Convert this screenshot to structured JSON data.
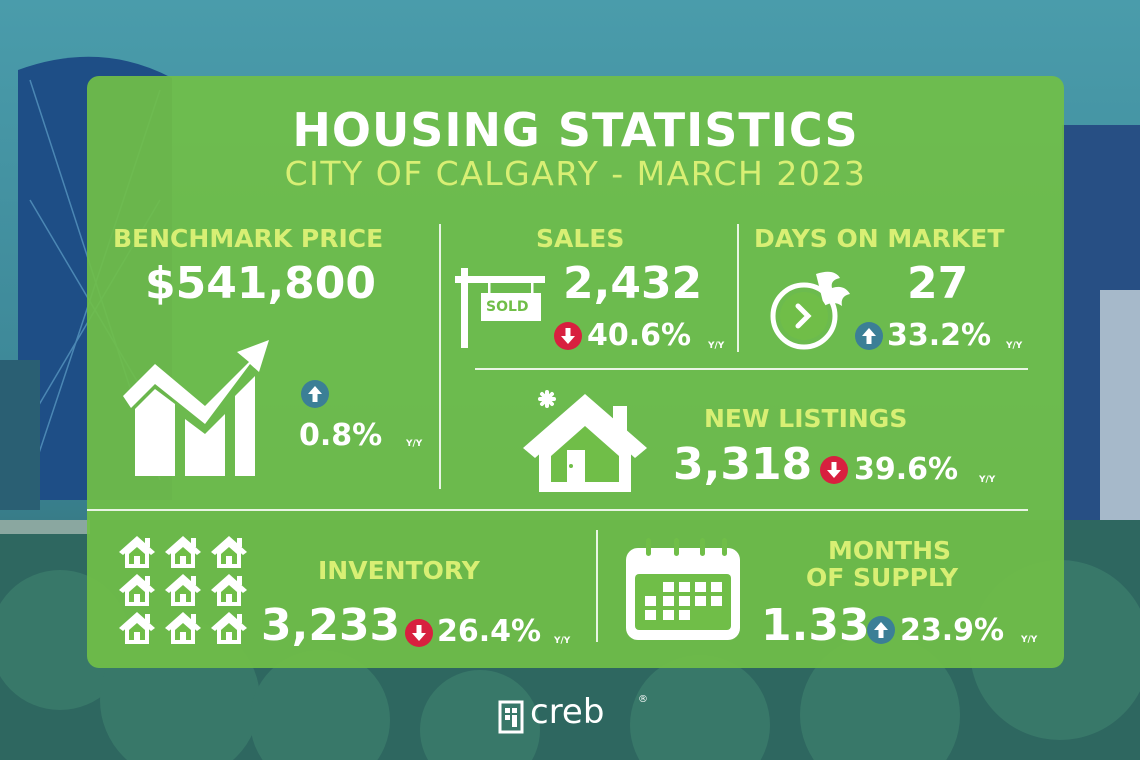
{
  "header": {
    "title": "HOUSING STATISTICS",
    "subtitle": "CITY OF CALGARY - MARCH 2023"
  },
  "benchmark": {
    "label": "BENCHMARK PRICE",
    "value": "$541,800",
    "change": "0.8%",
    "direction": "up",
    "suffix": "Y/Y"
  },
  "sales": {
    "label": "SALES",
    "value": "2,432",
    "sign_text": "SOLD",
    "change": "40.6%",
    "direction": "down",
    "suffix": "Y/Y"
  },
  "days_on_market": {
    "label": "DAYS ON MARKET",
    "value": "27",
    "change": "33.2%",
    "direction": "up",
    "suffix": "Y/Y"
  },
  "new_listings": {
    "label": "NEW LISTINGS",
    "value": "3,318",
    "change": "39.6%",
    "direction": "down",
    "suffix": "Y/Y"
  },
  "inventory": {
    "label": "INVENTORY",
    "value": "3,233",
    "change": "26.4%",
    "direction": "down",
    "suffix": "Y/Y"
  },
  "months_supply": {
    "label_line1": "MONTHS",
    "label_line2": "OF SUPPLY",
    "value": "1.33",
    "change": "23.9%",
    "direction": "up",
    "suffix": "Y/Y"
  },
  "brand": {
    "name": "creb",
    "mark": "®"
  },
  "colors": {
    "panel": "#70be48",
    "accent_text": "#d8ef74",
    "up_arrow": "#3b7f96",
    "down_arrow": "#d8203f"
  }
}
